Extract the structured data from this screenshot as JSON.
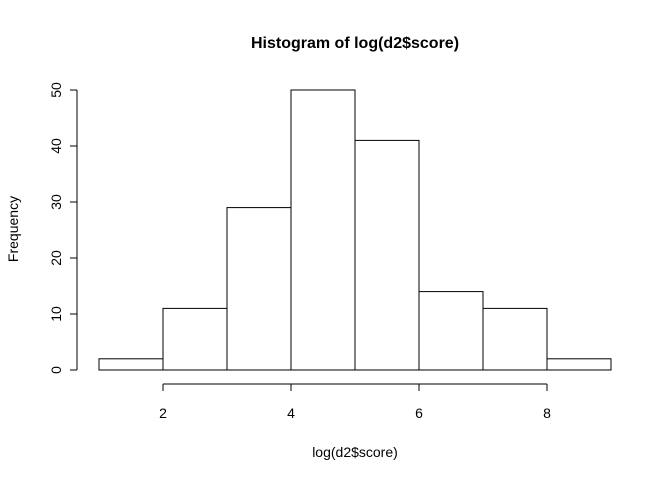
{
  "chart_data": {
    "type": "bar",
    "title": "Histogram of log(d2$score)",
    "xlabel": "log(d2$score)",
    "ylabel": "Frequency",
    "bins": [
      {
        "from": 1,
        "to": 2,
        "count": 2
      },
      {
        "from": 2,
        "to": 3,
        "count": 11
      },
      {
        "from": 3,
        "to": 4,
        "count": 29
      },
      {
        "from": 4,
        "to": 5,
        "count": 50
      },
      {
        "from": 5,
        "to": 6,
        "count": 41
      },
      {
        "from": 6,
        "to": 7,
        "count": 14
      },
      {
        "from": 7,
        "to": 8,
        "count": 11
      },
      {
        "from": 8,
        "to": 9,
        "count": 2
      }
    ],
    "xlim": [
      1,
      9
    ],
    "ylim": [
      0,
      50
    ],
    "xticks": [
      2,
      4,
      6,
      8
    ],
    "xtick_labels": [
      "2",
      "4",
      "6",
      "8"
    ],
    "yticks": [
      0,
      10,
      20,
      30,
      40,
      50
    ],
    "ytick_labels": [
      "0",
      "10",
      "20",
      "30",
      "40",
      "50"
    ],
    "grid": false,
    "bar_fill": "#ffffff",
    "bar_stroke": "#000000"
  }
}
